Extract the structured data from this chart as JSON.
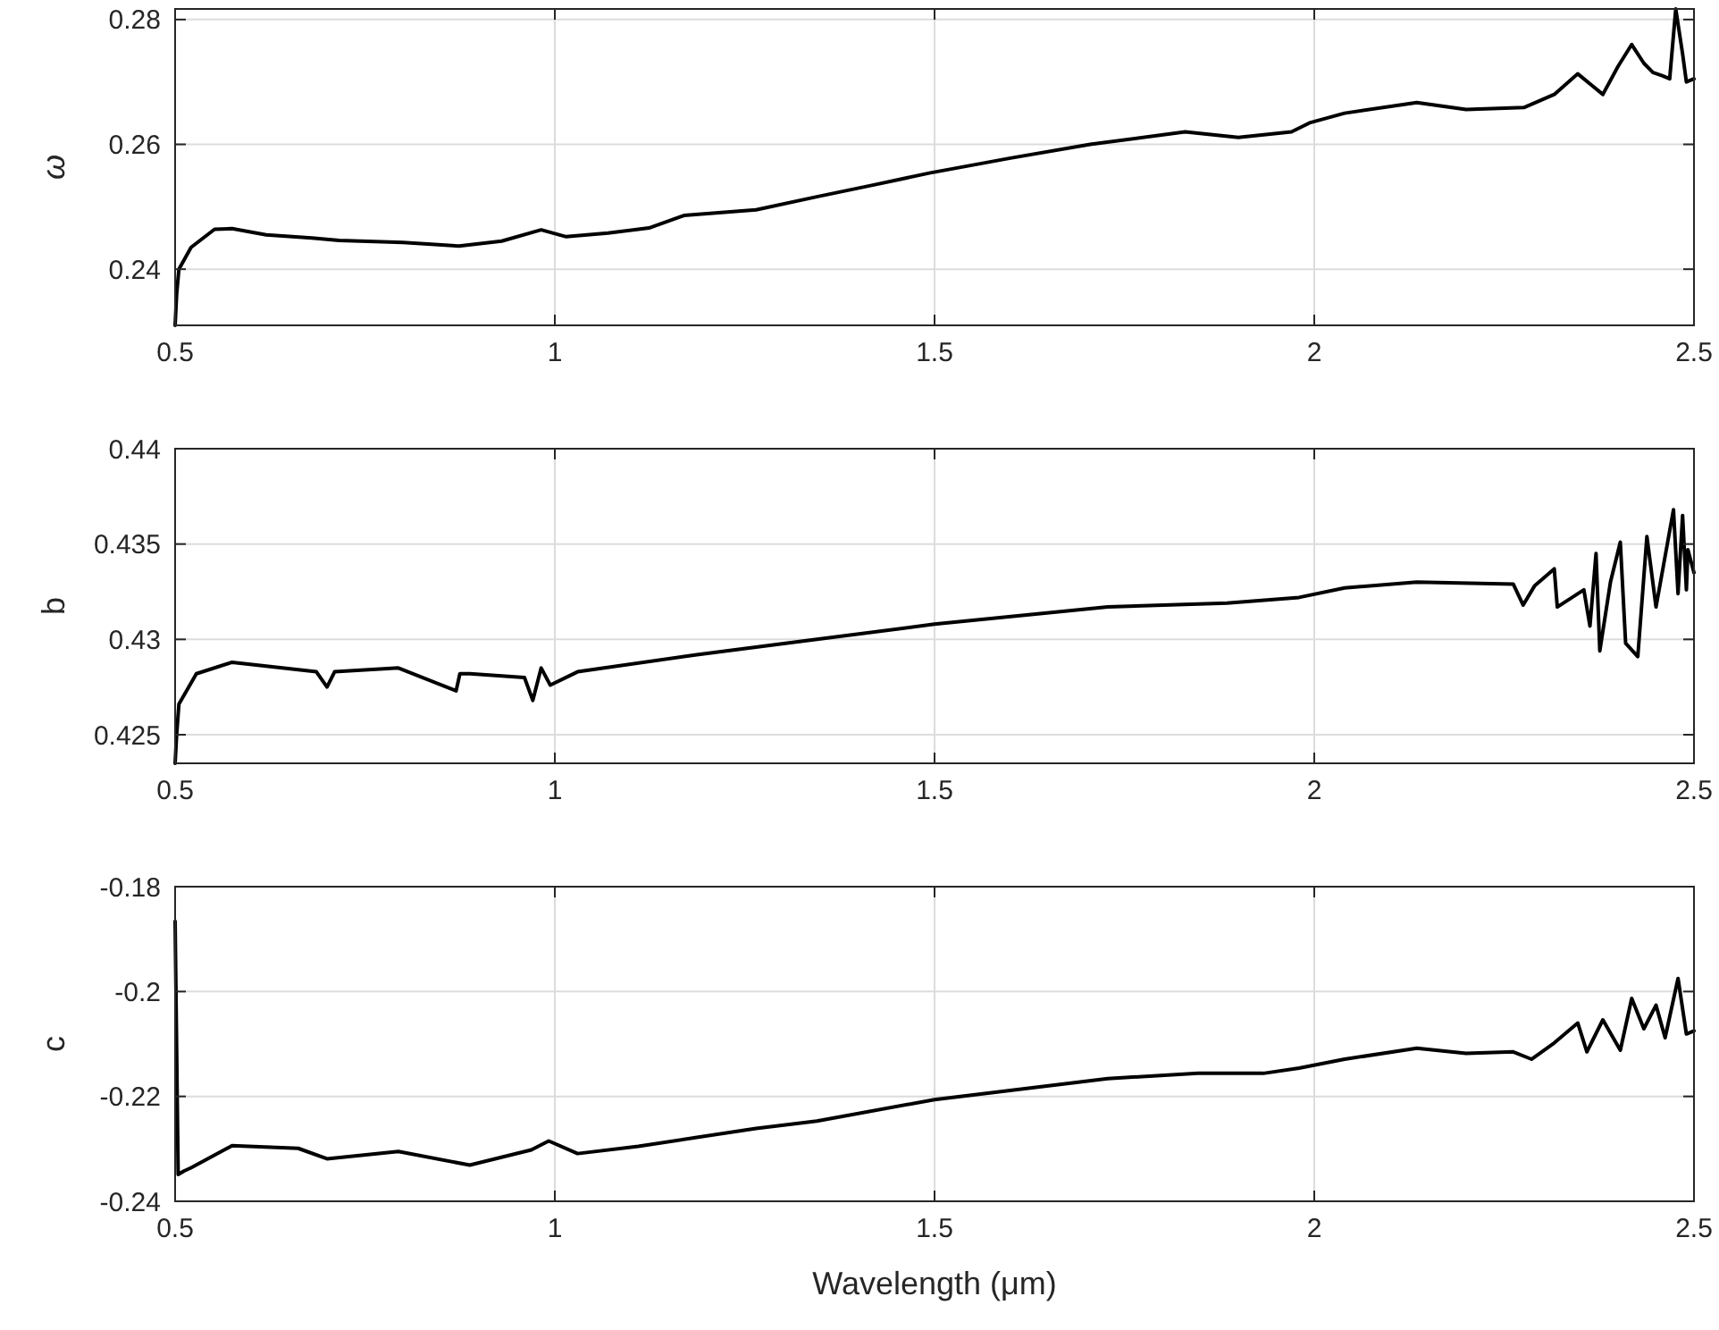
{
  "chart_data": [
    {
      "type": "line",
      "ylabel": "ω",
      "xlim": [
        0.5,
        2.5
      ],
      "ylim": [
        0.231,
        0.2817
      ],
      "xticks": [
        0.5,
        1,
        1.5,
        2,
        2.5
      ],
      "yticks": [
        0.24,
        0.26,
        0.28
      ],
      "grid": true,
      "series": [
        {
          "color": "#000000",
          "x": [
            0.5,
            0.502,
            0.505,
            0.521,
            0.552,
            0.575,
            0.62,
            0.68,
            0.716,
            0.8,
            0.874,
            0.93,
            0.982,
            1.015,
            1.07,
            1.124,
            1.17,
            1.265,
            1.345,
            1.42,
            1.493,
            1.6,
            1.705,
            1.83,
            1.9,
            1.97,
            1.995,
            2.04,
            2.135,
            2.2,
            2.276,
            2.316,
            2.347,
            2.38,
            2.4,
            2.418,
            2.434,
            2.446,
            2.458,
            2.468,
            2.476,
            2.485,
            2.49,
            2.5
          ],
          "values": [
            0.231,
            0.236,
            0.24,
            0.2435,
            0.2464,
            0.2465,
            0.2455,
            0.245,
            0.2446,
            0.2443,
            0.2437,
            0.2445,
            0.2463,
            0.2452,
            0.2458,
            0.2466,
            0.2486,
            0.2495,
            0.2516,
            0.2535,
            0.2554,
            0.2578,
            0.26,
            0.262,
            0.2611,
            0.262,
            0.2635,
            0.265,
            0.2667,
            0.2656,
            0.2659,
            0.268,
            0.2713,
            0.268,
            0.2725,
            0.276,
            0.273,
            0.2715,
            0.271,
            0.2705,
            0.2817,
            0.2745,
            0.27,
            0.2705
          ]
        }
      ]
    },
    {
      "type": "line",
      "ylabel": "b",
      "xlim": [
        0.5,
        2.5
      ],
      "ylim": [
        0.4235,
        0.44
      ],
      "xticks": [
        0.5,
        1,
        1.5,
        2,
        2.5
      ],
      "yticks": [
        0.425,
        0.43,
        0.435,
        0.44
      ],
      "grid": true,
      "series": [
        {
          "color": "#000000",
          "x": [
            0.5,
            0.502,
            0.505,
            0.528,
            0.575,
            0.686,
            0.7,
            0.71,
            0.794,
            0.87,
            0.875,
            0.888,
            0.96,
            0.971,
            0.982,
            0.994,
            1.03,
            1.187,
            1.345,
            1.5,
            1.728,
            1.885,
            1.98,
            2.04,
            2.135,
            2.262,
            2.275,
            2.29,
            2.316,
            2.32,
            2.355,
            2.363,
            2.371,
            2.376,
            2.39,
            2.403,
            2.41,
            2.426,
            2.438,
            2.45,
            2.473,
            2.479,
            2.485,
            2.49,
            2.492,
            2.5
          ],
          "values": [
            0.4235,
            0.425,
            0.4266,
            0.4282,
            0.4288,
            0.4283,
            0.4275,
            0.4283,
            0.4285,
            0.4273,
            0.4282,
            0.4282,
            0.428,
            0.4268,
            0.4285,
            0.4276,
            0.4283,
            0.4292,
            0.43,
            0.4308,
            0.4317,
            0.4319,
            0.4322,
            0.4327,
            0.433,
            0.4329,
            0.4318,
            0.4328,
            0.4337,
            0.4317,
            0.4326,
            0.4307,
            0.4345,
            0.4294,
            0.433,
            0.4351,
            0.4298,
            0.4291,
            0.4354,
            0.4317,
            0.4368,
            0.4324,
            0.4365,
            0.4326,
            0.4347,
            0.4335
          ]
        }
      ]
    },
    {
      "type": "line",
      "ylabel": "c",
      "xlabel": "Wavelength (μm)",
      "xlim": [
        0.5,
        2.5
      ],
      "ylim": [
        -0.24,
        -0.18
      ],
      "xticks": [
        0.5,
        1,
        1.5,
        2,
        2.5
      ],
      "yticks": [
        -0.24,
        -0.22,
        -0.2,
        -0.18
      ],
      "grid": true,
      "series": [
        {
          "color": "#000000",
          "x": [
            0.5,
            0.504,
            0.512,
            0.521,
            0.575,
            0.662,
            0.7,
            0.794,
            0.888,
            0.969,
            0.992,
            1.03,
            1.11,
            1.265,
            1.345,
            1.5,
            1.728,
            1.847,
            1.933,
            1.98,
            2.04,
            2.135,
            2.2,
            2.262,
            2.286,
            2.316,
            2.347,
            2.359,
            2.38,
            2.403,
            2.418,
            2.434,
            2.45,
            2.462,
            2.479,
            2.49,
            2.5
          ],
          "values": [
            -0.1866,
            -0.2349,
            -0.2342,
            -0.2336,
            -0.2294,
            -0.2299,
            -0.2319,
            -0.2305,
            -0.2331,
            -0.2302,
            -0.2285,
            -0.2309,
            -0.2295,
            -0.2261,
            -0.2247,
            -0.2206,
            -0.2166,
            -0.2156,
            -0.2156,
            -0.2146,
            -0.2129,
            -0.2108,
            -0.2118,
            -0.2115,
            -0.2129,
            -0.2098,
            -0.206,
            -0.2115,
            -0.2054,
            -0.2112,
            -0.2013,
            -0.2071,
            -0.2026,
            -0.2088,
            -0.1975,
            -0.2081,
            -0.2075
          ]
        }
      ]
    }
  ]
}
